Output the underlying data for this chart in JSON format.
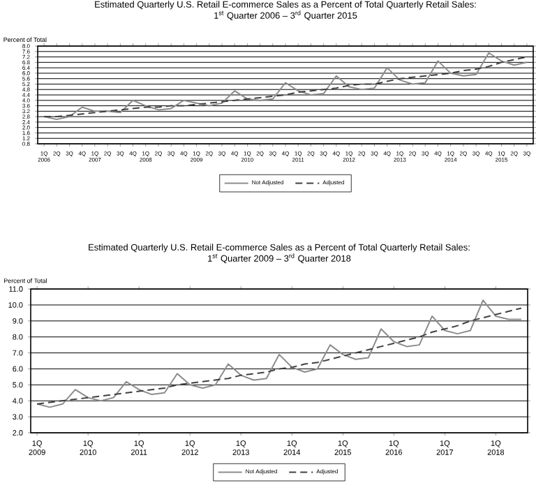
{
  "chart_data": [
    {
      "type": "line",
      "title": "Estimated Quarterly U.S. Retail E-commerce Sales as a Percent of Total Quarterly Retail Sales:",
      "subtitle": "1$^{st}$ Quarter 2006 – 3$^{rd}$ Quarter 2015",
      "ylabel": "Percent of Total",
      "categories": [
        "1Q 2006",
        "2Q",
        "3Q",
        "4Q",
        "1Q 2007",
        "2Q",
        "3Q",
        "4Q",
        "1Q 2008",
        "2Q",
        "3Q",
        "4Q",
        "1Q 2009",
        "2Q",
        "3Q",
        "4Q",
        "1Q 2010",
        "2Q",
        "3Q",
        "4Q",
        "1Q 2011",
        "2Q",
        "3Q",
        "4Q",
        "1Q 2012",
        "2Q",
        "3Q",
        "4Q",
        "1Q 2013",
        "2Q",
        "3Q",
        "4Q",
        "1Q 2014",
        "2Q",
        "3Q",
        "4Q",
        "1Q 2015",
        "2Q",
        "3Q"
      ],
      "ylim": [
        0.8,
        8.0
      ],
      "yticks": [
        {
          "value": 0.8,
          "label": "0.8"
        },
        {
          "value": 1.2,
          "label": "1.2"
        },
        {
          "value": 1.6,
          "label": "1.6"
        },
        {
          "value": 2.0,
          "label": "2.0"
        },
        {
          "value": 2.4,
          "label": "2.4"
        },
        {
          "value": 2.8,
          "label": "2.8"
        },
        {
          "value": 3.2,
          "label": "3.2"
        },
        {
          "value": 3.6,
          "label": "3.6"
        },
        {
          "value": 4.0,
          "label": "4.0"
        },
        {
          "value": 4.4,
          "label": "4.4"
        },
        {
          "value": 4.8,
          "label": "4.8"
        },
        {
          "value": 5.2,
          "label": "5.2"
        },
        {
          "value": 5.6,
          "label": "5.6"
        },
        {
          "value": 6.0,
          "label": "6.0"
        },
        {
          "value": 6.4,
          "label": "6.4"
        },
        {
          "value": 6.8,
          "label": "6.8"
        },
        {
          "value": 7.2,
          "label": "7.2"
        },
        {
          "value": 7.6,
          "label": "7.6"
        },
        {
          "value": 8.0,
          "label": "8.0"
        }
      ],
      "grid": "y",
      "legend": "bottom",
      "marker": "none",
      "series": [
        {
          "name": "Not Adjusted",
          "color": "#8c8c8c",
          "line_style": "solid",
          "values": [
            2.8,
            2.6,
            2.8,
            3.5,
            3.2,
            3.2,
            3.1,
            4.0,
            3.6,
            3.3,
            3.4,
            4.0,
            3.8,
            3.6,
            3.8,
            4.7,
            4.1,
            4.0,
            4.1,
            5.3,
            4.7,
            4.4,
            4.5,
            5.8,
            5.0,
            4.8,
            4.9,
            6.4,
            5.5,
            5.2,
            5.3,
            6.9,
            6.0,
            5.8,
            5.9,
            7.5,
            6.9,
            6.6,
            6.8
          ]
        },
        {
          "name": "Adjusted",
          "color": "#404040",
          "line_style": "dashed",
          "values": [
            2.8,
            2.8,
            2.9,
            3.0,
            3.1,
            3.2,
            3.3,
            3.4,
            3.5,
            3.5,
            3.6,
            3.6,
            3.7,
            3.8,
            3.9,
            4.0,
            4.1,
            4.2,
            4.3,
            4.4,
            4.6,
            4.7,
            4.8,
            4.9,
            5.1,
            5.2,
            5.2,
            5.4,
            5.6,
            5.7,
            5.8,
            5.9,
            6.0,
            6.2,
            6.3,
            6.5,
            6.8,
            7.0,
            7.2
          ]
        }
      ]
    },
    {
      "type": "line",
      "title": "Estimated Quarterly U.S. Retail E-commerce Sales as a Percent of Total Quarterly Retail Sales:",
      "subtitle": "1$^{st}$ Quarter 2009 – 3$^{rd}$ Quarter 2018",
      "ylabel": "Percent of Total",
      "categories": [
        "1Q 2009",
        null,
        null,
        null,
        "1Q 2010",
        null,
        null,
        null,
        "1Q 2011",
        null,
        null,
        null,
        "1Q 2012",
        null,
        null,
        null,
        "1Q 2013",
        null,
        null,
        null,
        "1Q 2014",
        null,
        null,
        null,
        "1Q 2015",
        null,
        null,
        null,
        "1Q 2016",
        null,
        null,
        null,
        "1Q 2017",
        null,
        null,
        null,
        "1Q 2018",
        null,
        null
      ],
      "ylim": [
        2.0,
        11.0
      ],
      "yticks": [
        {
          "value": 2,
          "label": "2.0"
        },
        {
          "value": 3,
          "label": "3.0"
        },
        {
          "value": 4,
          "label": "4.0"
        },
        {
          "value": 5,
          "label": "5.0"
        },
        {
          "value": 6,
          "label": "6.0"
        },
        {
          "value": 7,
          "label": "7.0"
        },
        {
          "value": 8,
          "label": "8.0"
        },
        {
          "value": 9,
          "label": "9.0"
        },
        {
          "value": 10,
          "label": "10.0"
        },
        {
          "value": 11,
          "label": "11.0"
        }
      ],
      "grid": "y",
      "legend": "bottom",
      "marker": "none",
      "series": [
        {
          "name": "Not Adjusted",
          "color": "#8c8c8c",
          "line_style": "solid",
          "values": [
            3.8,
            3.6,
            3.8,
            4.7,
            4.2,
            4.0,
            4.2,
            5.2,
            4.7,
            4.4,
            4.5,
            5.7,
            5.0,
            4.8,
            5.0,
            6.3,
            5.6,
            5.3,
            5.4,
            6.9,
            6.1,
            5.8,
            6.0,
            7.5,
            6.9,
            6.6,
            6.7,
            8.5,
            7.7,
            7.4,
            7.5,
            9.3,
            8.4,
            8.2,
            8.4,
            10.3,
            9.3,
            9.1,
            9.1
          ]
        },
        {
          "name": "Adjusted",
          "color": "#404040",
          "line_style": "dashed",
          "values": [
            3.8,
            3.9,
            4.0,
            4.1,
            4.2,
            4.3,
            4.4,
            4.5,
            4.6,
            4.7,
            4.8,
            5.0,
            5.1,
            5.2,
            5.3,
            5.4,
            5.6,
            5.7,
            5.8,
            6.0,
            6.1,
            6.3,
            6.4,
            6.6,
            6.8,
            7.0,
            7.2,
            7.4,
            7.6,
            7.8,
            8.0,
            8.3,
            8.5,
            8.7,
            9.0,
            9.2,
            9.4,
            9.6,
            9.8
          ]
        }
      ]
    }
  ]
}
